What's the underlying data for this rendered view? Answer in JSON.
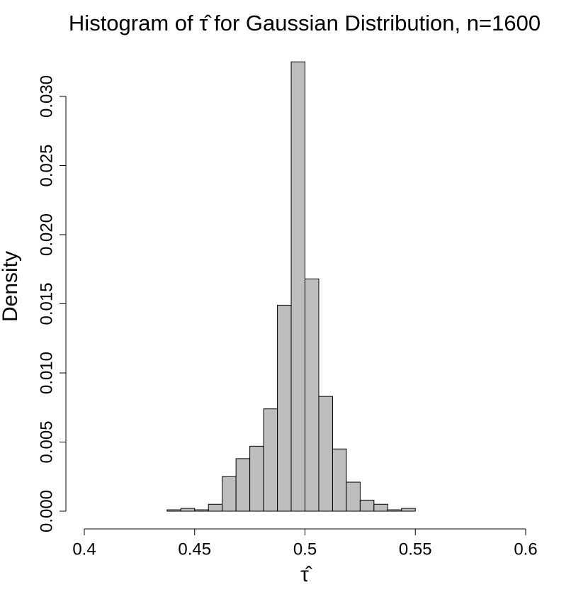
{
  "chart_data": {
    "type": "histogram",
    "title": "Histogram of τ̂ for Gaussian Distribution, n=1600",
    "xlabel": "τ̂",
    "ylabel": "Density",
    "bins": [
      0.4375,
      0.44375,
      0.45,
      0.45625,
      0.4625,
      0.46875,
      0.475,
      0.48125,
      0.4875,
      0.49375,
      0.5,
      0.50625,
      0.5125,
      0.51875,
      0.525,
      0.53125,
      0.5375,
      0.54375,
      0.55
    ],
    "values": [
      0.0001,
      0.0002,
      0.0001,
      0.0005,
      0.0025,
      0.0038,
      0.0047,
      0.0074,
      0.0149,
      0.0325,
      0.0168,
      0.0083,
      0.0045,
      0.0021,
      0.0008,
      0.0005,
      0.0001,
      0.0002
    ],
    "color": "#bebebe",
    "xlim": [
      0.4,
      0.6
    ],
    "xticks": [
      0.4,
      0.45,
      0.5,
      0.55,
      0.6
    ],
    "ylim": [
      0,
      0.03
    ],
    "yticks": [
      {
        "value": 0,
        "label": "0.000"
      },
      {
        "value": 0.005,
        "label": "0.005"
      },
      {
        "value": 0.01,
        "label": "0.010"
      },
      {
        "value": 0.015,
        "label": "0.015"
      },
      {
        "value": 0.02,
        "label": "0.020"
      },
      {
        "value": 0.025,
        "label": "0.025"
      },
      {
        "value": 0.03,
        "label": "0.030"
      }
    ]
  }
}
